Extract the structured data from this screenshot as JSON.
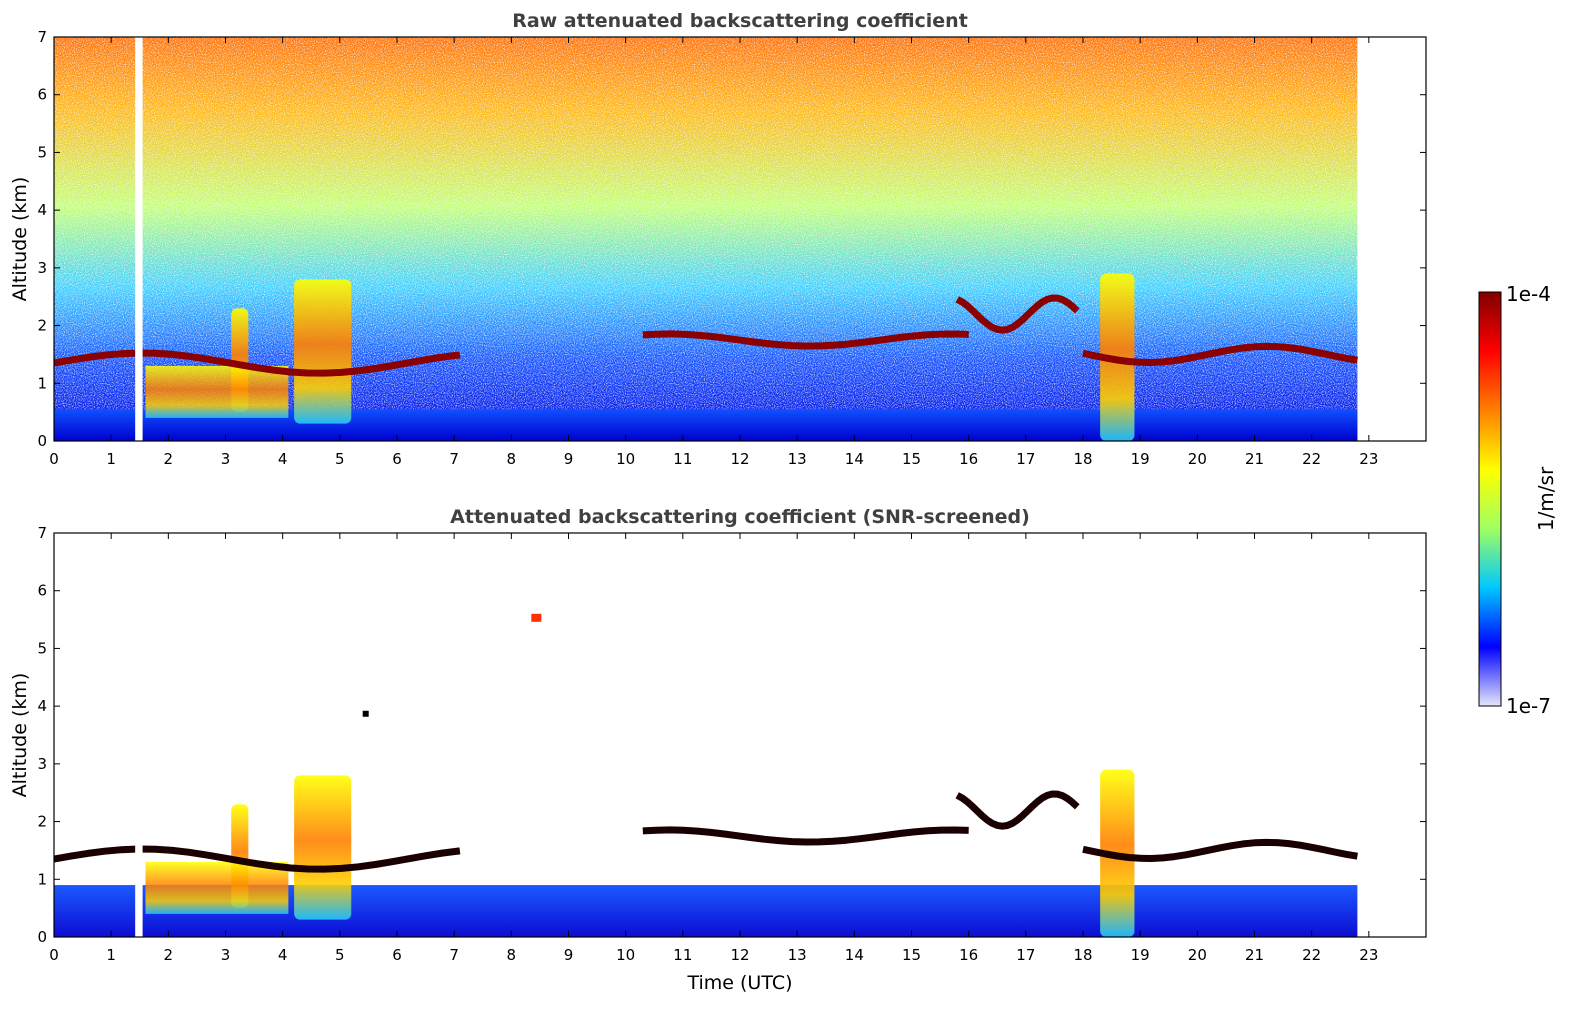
{
  "colors": {
    "frame": "#000000",
    "title": "#404040",
    "colormap_stops": [
      "#e6e6fa",
      "#0000ff",
      "#00c8ff",
      "#a0ff60",
      "#ffff00",
      "#ff8000",
      "#ff0000",
      "#800000"
    ]
  },
  "chart_data": [
    {
      "type": "heatmap",
      "title": "Raw attenuated backscattering coefficient",
      "xlabel": "",
      "ylabel": "Altitude (km)",
      "xlim": [
        0,
        24
      ],
      "ylim": [
        0,
        7
      ],
      "xticks": [
        "0",
        "1",
        "2",
        "3",
        "4",
        "5",
        "6",
        "7",
        "8",
        "9",
        "10",
        "11",
        "12",
        "13",
        "14",
        "15",
        "16",
        "17",
        "18",
        "19",
        "20",
        "21",
        "22",
        "23"
      ],
      "yticks": [
        "0",
        "1",
        "2",
        "3",
        "4",
        "5",
        "6",
        "7"
      ],
      "data_extent_hours": [
        0,
        22.8
      ],
      "data_gap_hours": [
        1.42,
        1.55
      ],
      "layers": [
        {
          "t": [
            0,
            7.1
          ],
          "alt_km": [
            1.1,
            1.6
          ],
          "value": "1e-4"
        },
        {
          "t": [
            10.3,
            16.0
          ],
          "alt_km": [
            1.6,
            1.9
          ],
          "value": "1e-4"
        },
        {
          "t": [
            15.8,
            17.9
          ],
          "alt_km": [
            1.8,
            2.6
          ],
          "value": "1e-4"
        },
        {
          "t": [
            18.0,
            22.8
          ],
          "alt_km": [
            1.3,
            1.7
          ],
          "value": "1e-4"
        }
      ],
      "plumes": [
        {
          "t": [
            3.1,
            3.4
          ],
          "alt_km": [
            0.5,
            2.3
          ]
        },
        {
          "t": [
            4.2,
            5.2
          ],
          "alt_km": [
            0.3,
            2.8
          ]
        },
        {
          "t": [
            18.3,
            18.9
          ],
          "alt_km": [
            0,
            2.9
          ]
        }
      ]
    },
    {
      "type": "heatmap",
      "title": "Attenuated backscattering coefficient (SNR-screened)",
      "xlabel": "Time (UTC)",
      "ylabel": "Altitude (km)",
      "xlim": [
        0,
        24
      ],
      "ylim": [
        0,
        7
      ],
      "xticks": [
        "0",
        "1",
        "2",
        "3",
        "4",
        "5",
        "6",
        "7",
        "8",
        "9",
        "10",
        "11",
        "12",
        "13",
        "14",
        "15",
        "16",
        "17",
        "18",
        "19",
        "20",
        "21",
        "22",
        "23"
      ],
      "yticks": [
        "0",
        "1",
        "2",
        "3",
        "4",
        "5",
        "6",
        "7"
      ],
      "data_extent_hours": [
        0,
        22.8
      ],
      "data_gap_hours": [
        1.42,
        1.55
      ],
      "screened": true
    }
  ],
  "colorbar": {
    "label": "1/m/sr",
    "max_label": "1e-4",
    "min_label": "1e-7",
    "scale": "log",
    "range": [
      1e-07,
      0.0001
    ]
  }
}
